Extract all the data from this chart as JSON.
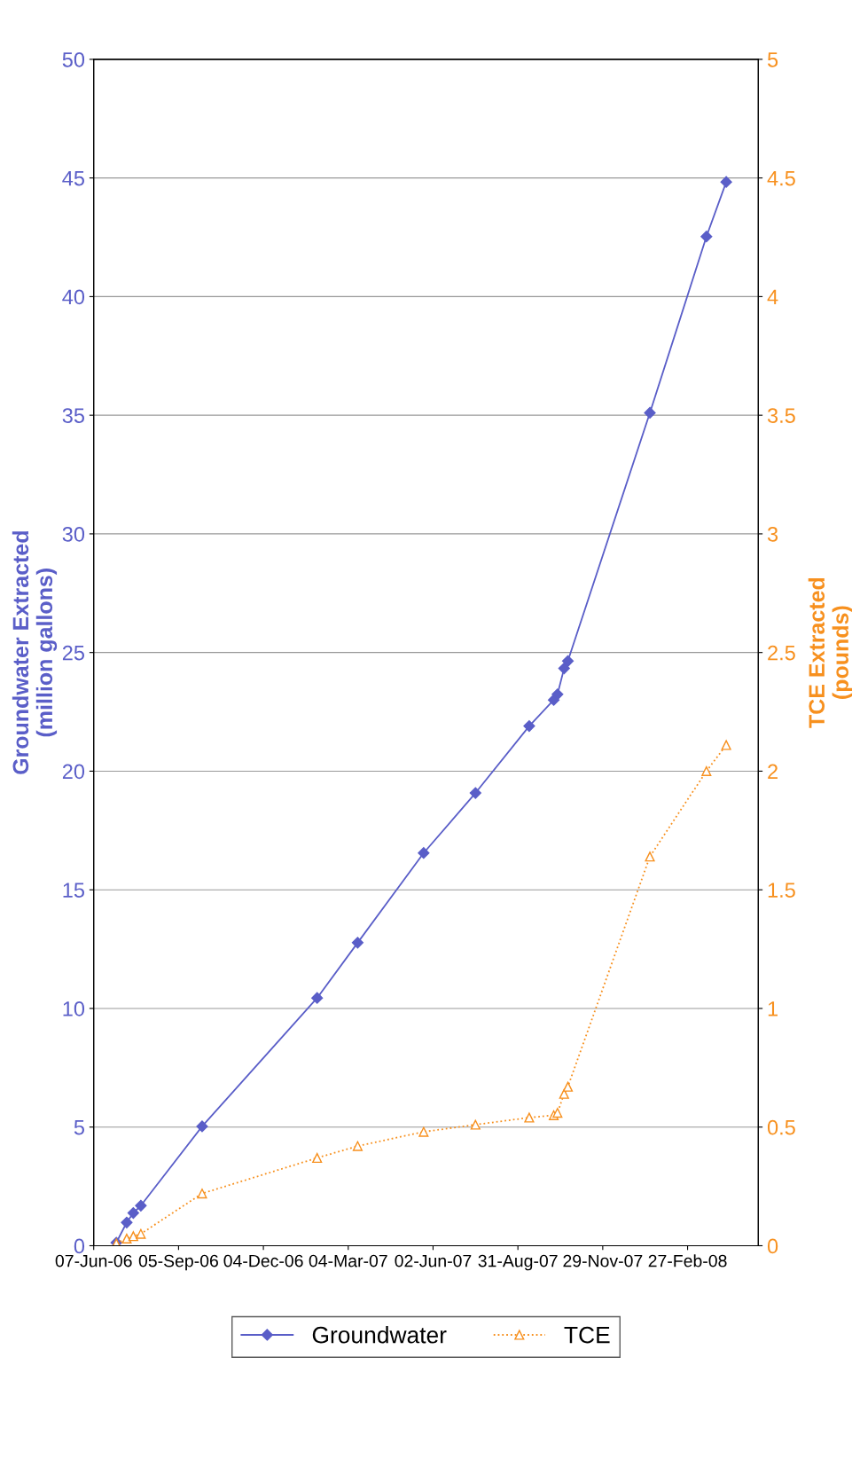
{
  "chart_data": {
    "type": "line",
    "ylabel": "Groundwater Extracted\n(million gallons)",
    "y2label": "TCE Extracted\n(pounds)",
    "x": [
      "2006-07-01",
      "2006-07-12",
      "2006-07-19",
      "2006-07-27",
      "2006-09-30",
      "2007-01-30",
      "2007-03-14",
      "2007-05-23",
      "2007-07-17",
      "2007-09-12",
      "2007-10-08",
      "2007-10-12",
      "2007-10-19",
      "2007-10-23",
      "2008-01-18",
      "2008-03-18",
      "2008-04-08"
    ],
    "series": [
      {
        "name": "Groundwater",
        "color": "#5a5ec8",
        "marker": "diamond",
        "line_style": "solid",
        "values": [
          0.13,
          0.98,
          1.38,
          1.69,
          5.03,
          10.44,
          12.77,
          16.55,
          19.08,
          21.9,
          23.0,
          23.24,
          24.33,
          24.64,
          35.1,
          42.53,
          44.83
        ]
      },
      {
        "name": "TCE",
        "color": "#f7901e",
        "marker": "triangle",
        "line_style": "dotted",
        "axis": "y2",
        "values": [
          0.01,
          0.03,
          0.04,
          0.05,
          0.22,
          0.37,
          0.42,
          0.48,
          0.51,
          0.54,
          0.55,
          0.56,
          0.64,
          0.67,
          1.64,
          2.0,
          2.11
        ]
      }
    ],
    "xlim": [
      "2006-06-07",
      "2008-05-12"
    ],
    "xticks": [
      {
        "value": "2006-06-07",
        "label": "07-Jun-06"
      },
      {
        "value": "2006-09-05",
        "label": "05-Sep-06"
      },
      {
        "value": "2006-12-04",
        "label": "04-Dec-06"
      },
      {
        "value": "2007-03-04",
        "label": "04-Mar-07"
      },
      {
        "value": "2007-06-02",
        "label": "02-Jun-07"
      },
      {
        "value": "2007-08-31",
        "label": "31-Aug-07"
      },
      {
        "value": "2007-11-29",
        "label": "29-Nov-07"
      },
      {
        "value": "2008-02-27",
        "label": "27-Feb-08"
      }
    ],
    "ylim": [
      0,
      50
    ],
    "yticks": [
      0,
      5,
      10,
      15,
      20,
      25,
      30,
      35,
      40,
      45,
      50
    ],
    "y2lim": [
      0,
      5
    ],
    "y2ticks": [
      0,
      0.5,
      1,
      1.5,
      2,
      2.5,
      3,
      3.5,
      4,
      4.5,
      5
    ],
    "grid": "y",
    "legend": "bottom"
  }
}
